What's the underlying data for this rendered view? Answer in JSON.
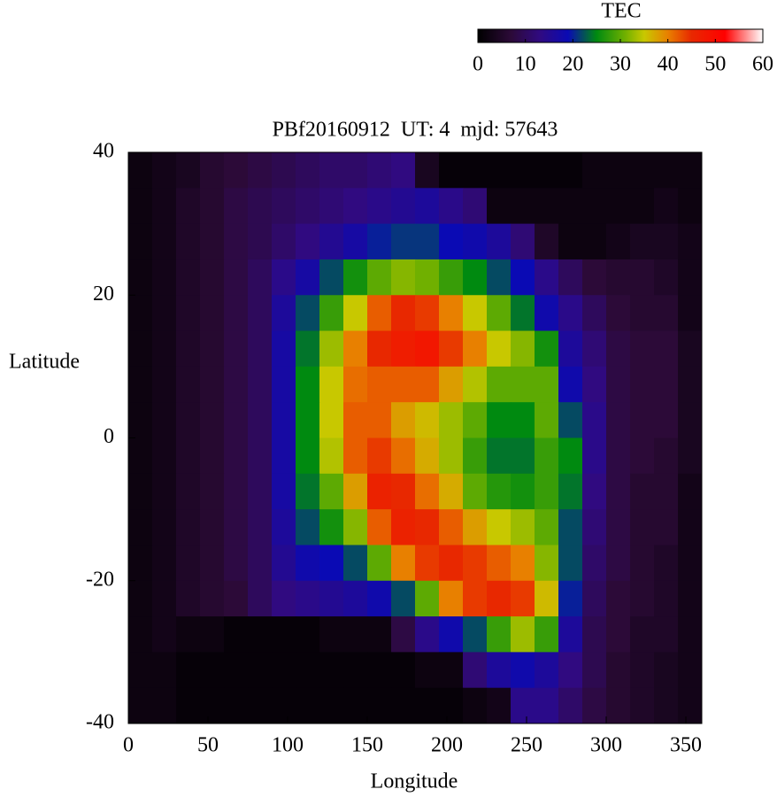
{
  "chart_data": {
    "type": "heatmap",
    "title": "PBf20160912  UT: 4  mjd: 57643",
    "x_label": "Longitude",
    "y_label": "Latitude",
    "xlim": [
      0,
      360
    ],
    "ylim": [
      -40,
      40
    ],
    "xticks": [
      0,
      50,
      100,
      150,
      200,
      250,
      300,
      350
    ],
    "yticks": [
      -40,
      -20,
      0,
      20,
      40
    ],
    "xbins": [
      0,
      15,
      30,
      45,
      60,
      75,
      90,
      105,
      120,
      135,
      150,
      165,
      180,
      195,
      210,
      225,
      240,
      255,
      270,
      285,
      300,
      315,
      330,
      345,
      360
    ],
    "ybins": [
      40,
      35,
      30,
      25,
      20,
      15,
      10,
      5,
      0,
      -5,
      -10,
      -15,
      -20,
      -25,
      -30,
      -35,
      -40
    ],
    "values": [
      [
        2,
        3,
        4,
        6,
        7,
        8,
        9,
        10,
        11,
        11,
        12,
        13,
        4,
        1,
        1,
        1,
        1,
        1,
        1,
        2,
        2,
        2,
        2,
        2
      ],
      [
        2,
        3,
        5,
        6,
        8,
        9,
        10,
        11,
        12,
        13,
        14,
        15,
        16,
        14,
        12,
        2,
        2,
        2,
        2,
        2,
        2,
        2,
        3,
        2
      ],
      [
        2,
        3,
        5,
        6,
        8,
        9,
        11,
        13,
        15,
        17,
        20,
        21,
        21,
        19,
        18,
        16,
        12,
        5,
        2,
        2,
        3,
        4,
        4,
        3
      ],
      [
        2,
        3,
        5,
        6,
        8,
        10,
        14,
        17,
        22,
        26,
        30,
        32,
        31,
        28,
        25,
        22,
        19,
        14,
        10,
        7,
        6,
        6,
        5,
        3
      ],
      [
        2,
        3,
        5,
        6,
        8,
        10,
        16,
        22,
        28,
        35,
        42,
        45,
        44,
        40,
        35,
        30,
        24,
        18,
        14,
        10,
        7,
        6,
        6,
        3
      ],
      [
        2,
        3,
        5,
        6,
        8,
        10,
        17,
        24,
        33,
        40,
        45,
        47,
        48,
        44,
        40,
        35,
        32,
        26,
        16,
        12,
        8,
        7,
        7,
        4
      ],
      [
        2,
        3,
        5,
        6,
        8,
        10,
        17,
        25,
        35,
        41,
        42,
        42,
        42,
        38,
        34,
        30,
        30,
        30,
        18,
        13,
        8,
        7,
        7,
        4
      ],
      [
        2,
        3,
        5,
        6,
        8,
        10,
        17,
        25,
        35,
        42,
        42,
        38,
        36,
        33,
        30,
        25,
        25,
        30,
        22,
        14,
        8,
        7,
        7,
        4
      ],
      [
        2,
        3,
        5,
        6,
        8,
        10,
        17,
        25,
        34,
        42,
        44,
        41,
        37,
        33,
        28,
        24,
        24,
        28,
        25,
        14,
        8,
        7,
        6,
        4
      ],
      [
        2,
        3,
        5,
        6,
        8,
        10,
        17,
        24,
        30,
        38,
        46,
        45,
        41,
        37,
        30,
        27,
        26,
        28,
        24,
        13,
        8,
        6,
        6,
        3
      ],
      [
        2,
        3,
        5,
        6,
        8,
        10,
        16,
        22,
        26,
        32,
        42,
        46,
        45,
        42,
        38,
        35,
        33,
        30,
        22,
        12,
        8,
        6,
        6,
        3
      ],
      [
        2,
        3,
        5,
        6,
        8,
        10,
        15,
        18,
        19,
        22,
        30,
        40,
        44,
        45,
        44,
        42,
        40,
        32,
        22,
        11,
        8,
        6,
        5,
        3
      ],
      [
        2,
        3,
        5,
        6,
        7,
        10,
        13,
        14,
        15,
        16,
        18,
        22,
        30,
        40,
        44,
        45,
        44,
        36,
        20,
        10,
        7,
        6,
        5,
        3
      ],
      [
        2,
        3,
        2,
        2,
        1,
        1,
        1,
        1,
        2,
        2,
        2,
        8,
        14,
        18,
        22,
        28,
        33,
        28,
        16,
        9,
        7,
        5,
        5,
        3
      ],
      [
        2,
        2,
        1,
        1,
        1,
        1,
        1,
        1,
        1,
        1,
        1,
        1,
        2,
        2,
        12,
        16,
        18,
        16,
        13,
        9,
        6,
        5,
        4,
        3
      ],
      [
        2,
        2,
        1,
        1,
        1,
        1,
        1,
        1,
        1,
        1,
        1,
        1,
        1,
        1,
        2,
        3,
        14,
        14,
        11,
        8,
        6,
        5,
        4,
        3
      ]
    ],
    "colorbar_label": "TEC",
    "clim": [
      0,
      60
    ],
    "cticks": [
      0,
      10,
      20,
      30,
      40,
      50,
      60
    ],
    "colorscale": [
      {
        "value": 0,
        "color": "#000000"
      },
      {
        "value": 7,
        "color": "#2c0a38"
      },
      {
        "value": 13,
        "color": "#300a80"
      },
      {
        "value": 19,
        "color": "#0a0ab4"
      },
      {
        "value": 25,
        "color": "#008a10"
      },
      {
        "value": 31,
        "color": "#70b000"
      },
      {
        "value": 35,
        "color": "#c8c800"
      },
      {
        "value": 40,
        "color": "#e88000"
      },
      {
        "value": 45,
        "color": "#e82800"
      },
      {
        "value": 52,
        "color": "#ff0000"
      },
      {
        "value": 60,
        "color": "#ffffff"
      }
    ]
  }
}
